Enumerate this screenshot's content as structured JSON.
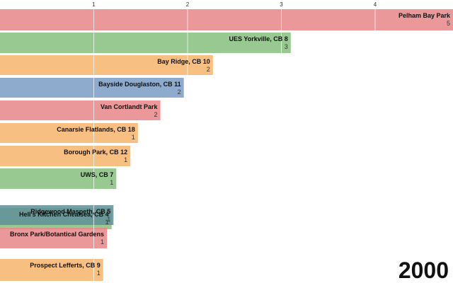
{
  "chart_data": {
    "type": "bar",
    "orientation": "horizontal",
    "xlim": [
      0,
      4.8
    ],
    "x_ticks": [
      "1",
      "2",
      "3",
      "4"
    ],
    "x_tick_values": [
      1,
      2,
      3,
      4
    ],
    "grid": true,
    "year": "2000",
    "bars": [
      {
        "category": "Pelham Bay Park",
        "value_label": "5",
        "value": 5,
        "color": "#e8868a"
      },
      {
        "category": "UES Yorkville, CB 8",
        "value_label": "3",
        "value": 3.1,
        "color": "#86bf7e"
      },
      {
        "category": "Bay Ridge, CB 10",
        "value_label": "2",
        "value": 2.27,
        "color": "#f6b46b"
      },
      {
        "category": "Bayside Douglaston, CB 11",
        "value_label": "2",
        "value": 1.96,
        "color": "#7a9cc4"
      },
      {
        "category": "Van Cortlandt Park",
        "value_label": "2",
        "value": 1.71,
        "color": "#e8868a"
      },
      {
        "category": "Canarsie Flatlands, CB 18",
        "value_label": "1",
        "value": 1.47,
        "color": "#f6b46b"
      },
      {
        "category": "Borough Park, CB 12",
        "value_label": "1",
        "value": 1.39,
        "color": "#f6b46b"
      },
      {
        "category": "UWS, CB 7",
        "value_label": "1",
        "value": 1.24,
        "color": "#86bf7e"
      },
      {
        "category": "Hell's Kitchen Chealsea, CB 4",
        "value_label": "1",
        "value": 1.19,
        "color": "#86bf7e"
      },
      {
        "category": "Ridgewood Maspeth, CB 5",
        "value_label": "1",
        "value": 1.21,
        "color": "#5f8f98"
      },
      {
        "category": "Bronx Park/Botantical Gardens",
        "value_label": "1",
        "value": 1.14,
        "color": "#e8868a"
      },
      {
        "category": "Prospect Lefferts, CB 9",
        "value_label": "1",
        "value": 1.1,
        "color": "#f6b46b"
      }
    ]
  }
}
